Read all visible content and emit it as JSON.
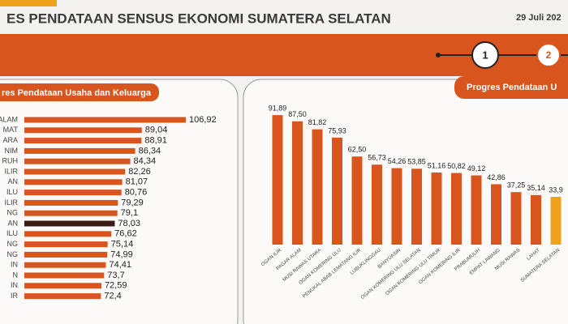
{
  "header": {
    "title": "ES PENDATAAN SENSUS EKONOMI SUMATERA SELATAN",
    "date": "29 Juli 202",
    "steps": [
      "1",
      "2"
    ]
  },
  "chart_data": [
    {
      "type": "hbar",
      "title": "res Pendataan Usaha dan Keluarga",
      "categories": [
        "ALAM",
        "MAT",
        "ARA",
        "NIM",
        "RUH",
        "ILIR",
        "AN",
        "ILU",
        "ILIR",
        "NG",
        "AN",
        "ILU",
        "NG",
        "NG",
        "IN",
        "N",
        "IN",
        "IR"
      ],
      "values": [
        106.92,
        89.04,
        88.91,
        86.34,
        84.34,
        82.26,
        81.07,
        80.76,
        79.29,
        79.1,
        78.03,
        76.62,
        75.14,
        74.99,
        74.41,
        73.7,
        72.59,
        72.4
      ],
      "value_labels": [
        "106,92",
        "89,04",
        "88,91",
        "86,34",
        "84,34",
        "82,26",
        "81,07",
        "80,76",
        "79,29",
        "79,1",
        "78,03",
        "76,62",
        "75,14",
        "74,99",
        "74,41",
        "73,7",
        "72,59",
        "72,4"
      ],
      "colors": [
        "#d9551e",
        "#d9551e",
        "#d9551e",
        "#d9551e",
        "#d9551e",
        "#d9551e",
        "#d9551e",
        "#d9551e",
        "#d9551e",
        "#d9551e",
        "#3a1a12",
        "#d9551e",
        "#d9551e",
        "#d9551e",
        "#d9551e",
        "#d9551e",
        "#d9551e",
        "#d9551e"
      ]
    },
    {
      "type": "bar",
      "title": "Progres Pendataan U",
      "categories": [
        "OGAN ILIR",
        "PAGAR ALAM",
        "MUSI RAWAS UTARA",
        "OGAN KOMERING ULU",
        "PENUKAL ABAB LEMATANG ILIR",
        "LUBUKLINGGAU",
        "BANYUASIN",
        "OGAN KOMERING ULU SELATAN",
        "OGAN KOMERING ULU TIMUR",
        "OGAN KOMERING ILIR",
        "PRABUMULIH",
        "EMPAT LAWANG",
        "MUSI RAWAS",
        "LAHAT",
        "SUMATERA SELATAN"
      ],
      "values": [
        91.89,
        87.5,
        81.82,
        75.93,
        62.5,
        56.73,
        54.26,
        53.85,
        51.16,
        50.82,
        49.12,
        42.86,
        37.25,
        35.14,
        33.9
      ],
      "value_labels": [
        "91,89",
        "87,50",
        "81,82",
        "75,93",
        "62,50",
        "56,73",
        "54,26",
        "53,85",
        "51,16",
        "50,82",
        "49,12",
        "42,86",
        "37,25",
        "35,14",
        "33,9"
      ],
      "colors": [
        "#d9551e",
        "#d9551e",
        "#d9551e",
        "#d9551e",
        "#d9551e",
        "#d9551e",
        "#d9551e",
        "#d9551e",
        "#d9551e",
        "#d9551e",
        "#d9551e",
        "#d9551e",
        "#d9551e",
        "#d9551e",
        "#f0a21c"
      ]
    }
  ]
}
